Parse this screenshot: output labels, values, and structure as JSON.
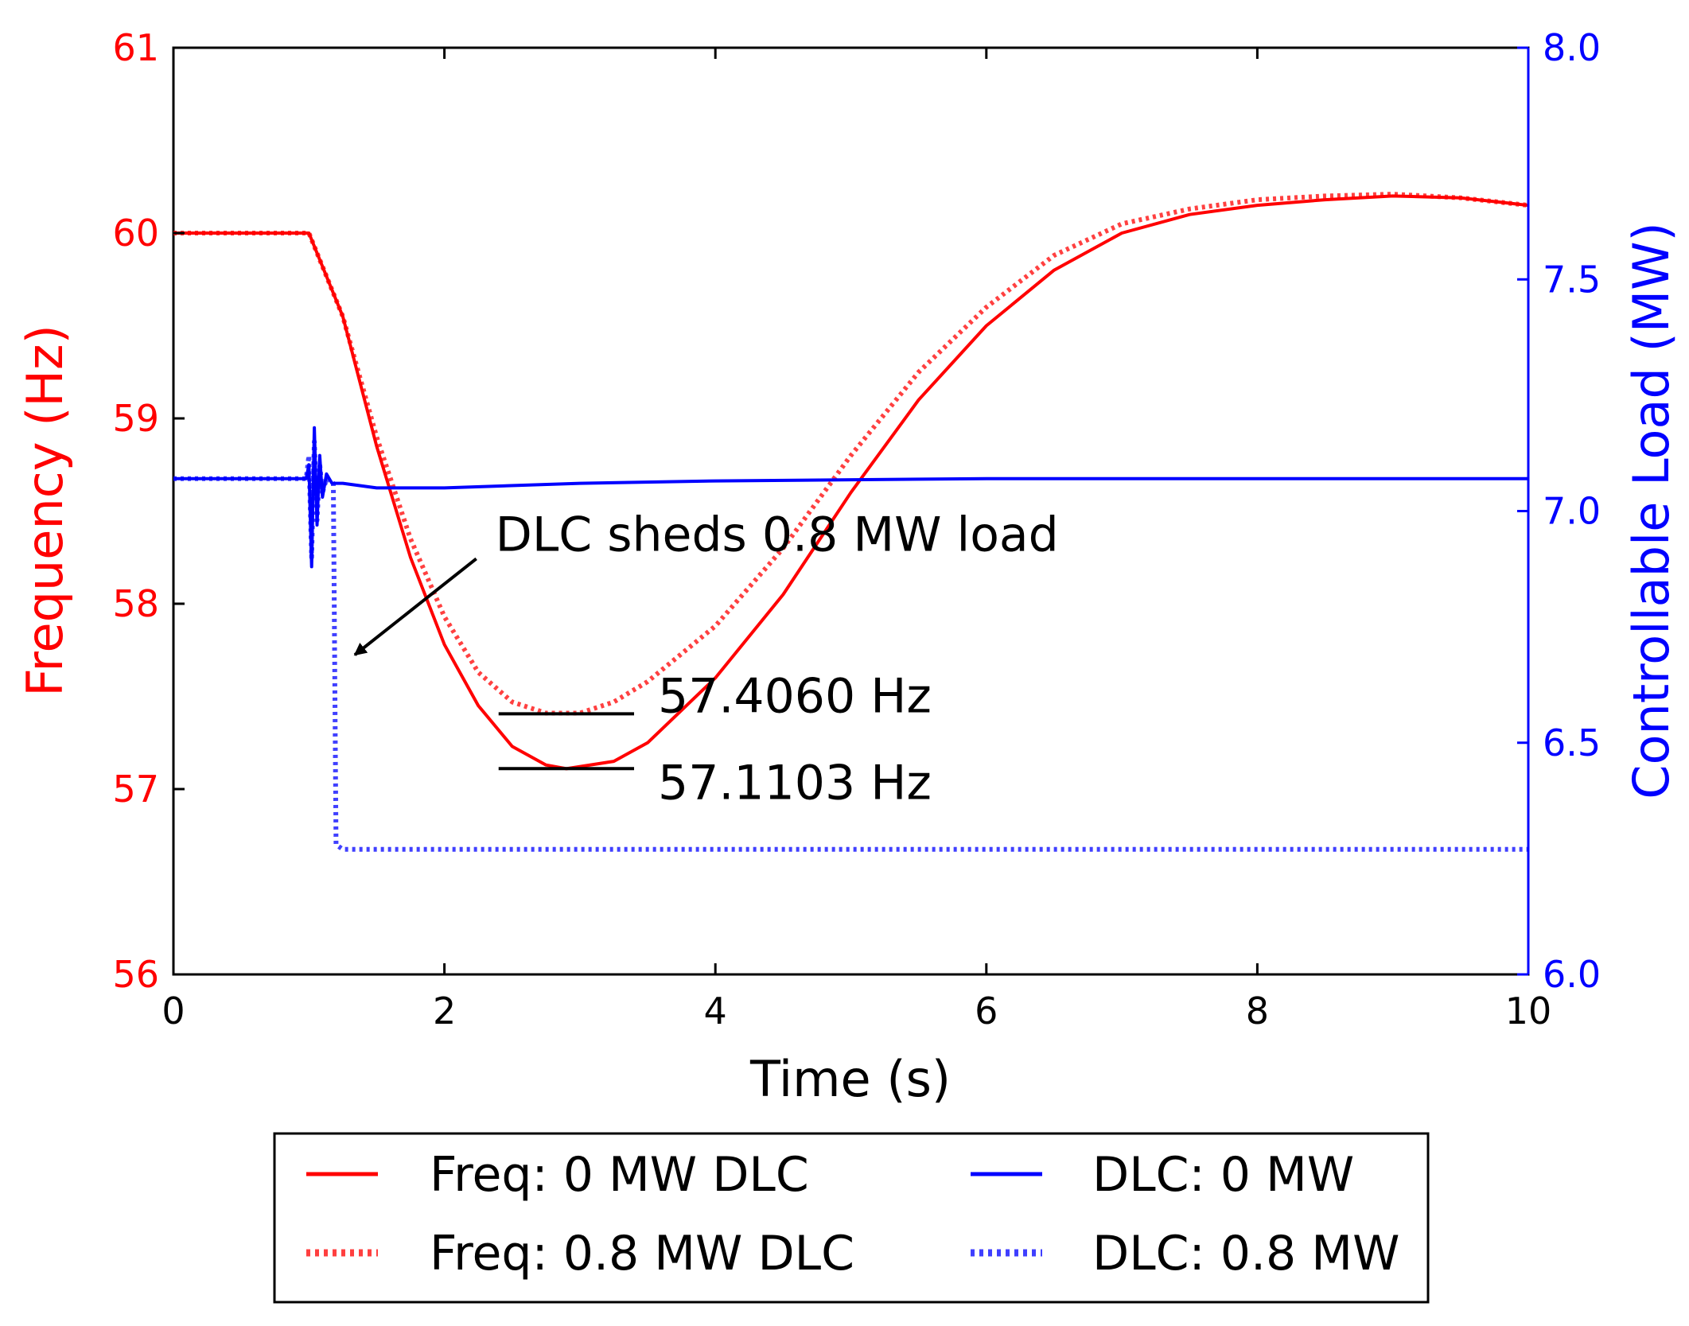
{
  "chart_data": {
    "type": "line",
    "xlabel": "Time (s)",
    "ylabel_left": "Frequency (Hz)",
    "ylabel_right": "Controllable Load (MW)",
    "xlim": [
      0,
      10
    ],
    "ylim_left": [
      56,
      61
    ],
    "ylim_right": [
      6.0,
      8.0
    ],
    "x_ticks": [
      "0",
      "2",
      "4",
      "6",
      "8",
      "10"
    ],
    "left_ticks": [
      "56",
      "57",
      "58",
      "59",
      "60",
      "61"
    ],
    "right_ticks": [
      "6.0",
      "6.5",
      "7.0",
      "7.5",
      "8.0"
    ],
    "grid": false,
    "legend_position": "below",
    "series": [
      {
        "name": "Freq: 0 MW DLC",
        "axis": "left",
        "color": "#ff0000",
        "style": "solid",
        "points": [
          [
            0,
            60.0
          ],
          [
            1.0,
            60.0
          ],
          [
            1.25,
            59.55
          ],
          [
            1.5,
            58.85
          ],
          [
            1.75,
            58.25
          ],
          [
            2.0,
            57.78
          ],
          [
            2.25,
            57.45
          ],
          [
            2.5,
            57.23
          ],
          [
            2.75,
            57.13
          ],
          [
            2.9,
            57.11
          ],
          [
            3.25,
            57.15
          ],
          [
            3.5,
            57.25
          ],
          [
            4.0,
            57.6
          ],
          [
            4.5,
            58.05
          ],
          [
            5.0,
            58.6
          ],
          [
            5.5,
            59.1
          ],
          [
            6.0,
            59.5
          ],
          [
            6.5,
            59.8
          ],
          [
            7.0,
            60.0
          ],
          [
            7.5,
            60.1
          ],
          [
            8.0,
            60.15
          ],
          [
            8.5,
            60.18
          ],
          [
            9.0,
            60.2
          ],
          [
            9.5,
            60.19
          ],
          [
            10.0,
            60.15
          ]
        ]
      },
      {
        "name": "Freq: 0.8 MW DLC",
        "axis": "left",
        "color": "#ff0000",
        "style": "dotted",
        "points": [
          [
            0,
            60.0
          ],
          [
            1.0,
            60.0
          ],
          [
            1.25,
            59.55
          ],
          [
            1.5,
            58.9
          ],
          [
            1.75,
            58.35
          ],
          [
            2.0,
            57.93
          ],
          [
            2.25,
            57.63
          ],
          [
            2.5,
            57.47
          ],
          [
            2.75,
            57.41
          ],
          [
            3.0,
            57.41
          ],
          [
            3.25,
            57.47
          ],
          [
            3.5,
            57.58
          ],
          [
            4.0,
            57.88
          ],
          [
            4.5,
            58.3
          ],
          [
            5.0,
            58.8
          ],
          [
            5.5,
            59.25
          ],
          [
            6.0,
            59.6
          ],
          [
            6.5,
            59.88
          ],
          [
            7.0,
            60.05
          ],
          [
            7.5,
            60.13
          ],
          [
            8.0,
            60.18
          ],
          [
            8.5,
            60.2
          ],
          [
            9.0,
            60.21
          ],
          [
            9.5,
            60.19
          ],
          [
            10.0,
            60.15
          ]
        ]
      },
      {
        "name": "DLC: 0 MW",
        "axis": "right",
        "color": "#0000ff",
        "style": "solid",
        "points": [
          [
            0,
            7.07
          ],
          [
            0.98,
            7.07
          ],
          [
            1.0,
            7.1
          ],
          [
            1.02,
            6.88
          ],
          [
            1.04,
            7.18
          ],
          [
            1.06,
            6.97
          ],
          [
            1.08,
            7.12
          ],
          [
            1.1,
            7.03
          ],
          [
            1.13,
            7.08
          ],
          [
            1.17,
            7.06
          ],
          [
            1.25,
            7.06
          ],
          [
            1.5,
            7.05
          ],
          [
            2.0,
            7.05
          ],
          [
            3.0,
            7.06
          ],
          [
            4.0,
            7.065
          ],
          [
            6.0,
            7.07
          ],
          [
            10.0,
            7.07
          ]
        ]
      },
      {
        "name": "DLC: 0.8 MW",
        "axis": "right",
        "color": "#0000ff",
        "style": "dotted",
        "points": [
          [
            0,
            7.07
          ],
          [
            0.98,
            7.07
          ],
          [
            1.0,
            7.12
          ],
          [
            1.02,
            6.9
          ],
          [
            1.04,
            7.15
          ],
          [
            1.06,
            6.98
          ],
          [
            1.08,
            7.1
          ],
          [
            1.1,
            7.04
          ],
          [
            1.13,
            7.07
          ],
          [
            1.18,
            7.06
          ],
          [
            1.2,
            6.28
          ],
          [
            1.25,
            6.27
          ],
          [
            10.0,
            6.27
          ]
        ]
      }
    ],
    "annotations": [
      {
        "text": "DLC sheds 0.8 MW load",
        "arrow_to": [
          1.28,
          57.75
        ],
        "text_at": [
          2.2,
          58.2
        ]
      },
      {
        "text": "57.4060 Hz",
        "value": 57.406,
        "line_x": [
          2.4,
          3.4
        ]
      },
      {
        "text": "57.1103 Hz",
        "value": 57.1103,
        "line_x": [
          2.4,
          3.4
        ]
      }
    ]
  }
}
